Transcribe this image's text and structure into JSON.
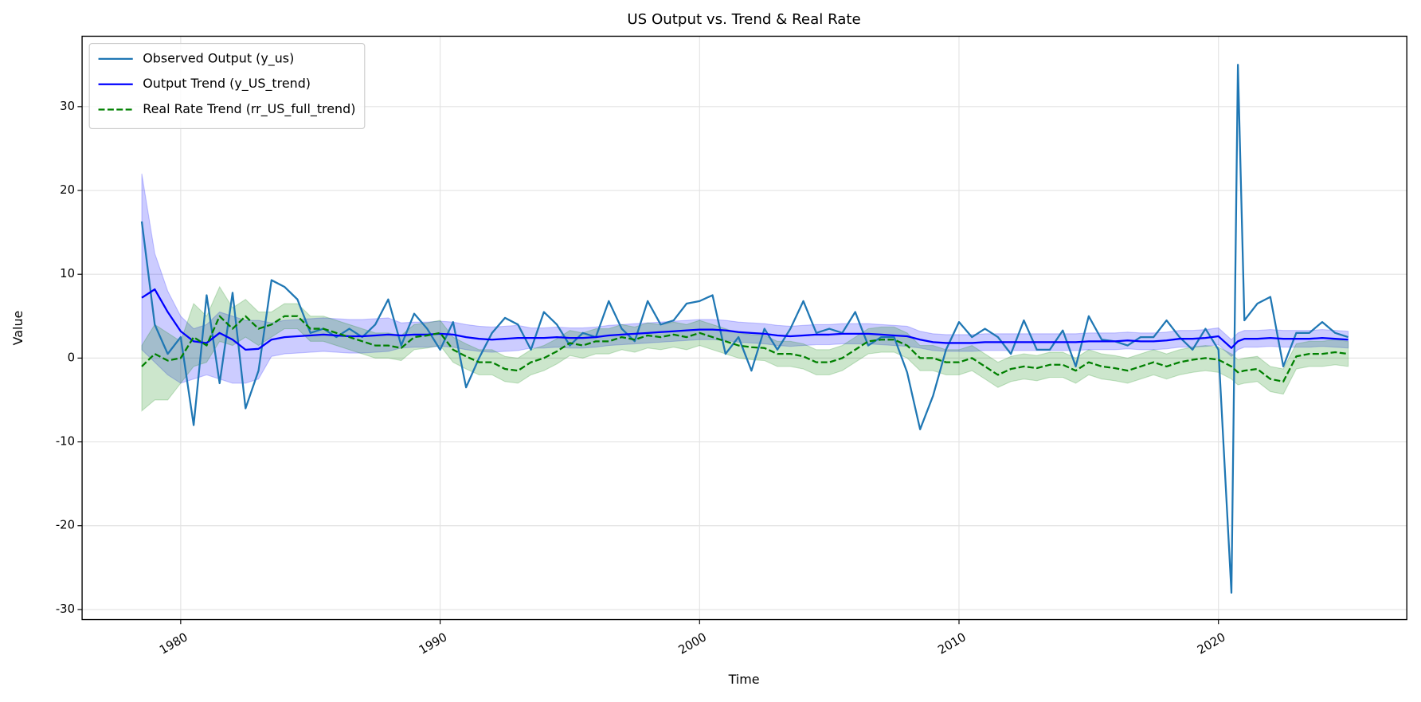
{
  "chart_data": {
    "type": "line",
    "title": "US Output vs. Trend & Real Rate",
    "x_label": "Time",
    "y_label": "Value",
    "x": [
      1978.5,
      1979,
      1979.5,
      1980,
      1980.5,
      1981,
      1981.5,
      1982,
      1982.5,
      1983,
      1983.5,
      1984,
      1984.5,
      1985,
      1985.5,
      1986,
      1986.5,
      1987,
      1987.5,
      1988,
      1988.5,
      1989,
      1989.5,
      1990,
      1990.5,
      1991,
      1991.5,
      1992,
      1992.5,
      1993,
      1993.5,
      1994,
      1994.5,
      1995,
      1995.5,
      1996,
      1996.5,
      1997,
      1997.5,
      1998,
      1998.5,
      1999,
      1999.5,
      2000,
      2000.5,
      2001,
      2001.5,
      2002,
      2002.5,
      2003,
      2003.5,
      2004,
      2004.5,
      2005,
      2005.5,
      2006,
      2006.5,
      2007,
      2007.5,
      2008,
      2008.5,
      2009,
      2009.5,
      2010,
      2010.5,
      2011,
      2011.5,
      2012,
      2012.5,
      2013,
      2013.5,
      2014,
      2014.5,
      2015,
      2015.5,
      2016,
      2016.5,
      2017,
      2017.5,
      2018,
      2018.5,
      2019,
      2019.5,
      2020,
      2020.5,
      2020.75,
      2021,
      2021.5,
      2022,
      2022.5,
      2023,
      2023.5,
      2024,
      2024.5,
      2025
    ],
    "xlim": [
      1976.2,
      2027.26
    ],
    "xticks": [
      1980,
      1990,
      2000,
      2010,
      2020
    ],
    "ylim": [
      -31.2,
      38.4
    ],
    "yticks": [
      -30,
      -20,
      -10,
      0,
      10,
      20,
      30
    ],
    "grid": true,
    "legend": "upper left",
    "series": [
      {
        "name": "Observed Output (y_us)",
        "color": "#1f77b4",
        "dash": "solid",
        "values": [
          16.3,
          4,
          0.5,
          2.5,
          -8,
          7.5,
          -3,
          7.8,
          -6,
          -1.5,
          9.3,
          8.5,
          7,
          3,
          3.5,
          2.5,
          3.5,
          2.5,
          4,
          7,
          1.5,
          5.3,
          3.5,
          1,
          4.3,
          -3.5,
          0,
          3,
          4.8,
          4,
          1,
          5.5,
          4,
          1.5,
          3,
          2.5,
          6.8,
          3.5,
          2,
          6.8,
          4,
          4.5,
          6.5,
          6.8,
          7.5,
          0.5,
          2.5,
          -1.5,
          3.5,
          1,
          3.5,
          6.8,
          3,
          3.5,
          3,
          5.5,
          1.5,
          2.5,
          2.5,
          -1.7,
          -8.5,
          -4.5,
          1,
          4.3,
          2.5,
          3.5,
          2.5,
          0.5,
          4.5,
          1,
          1,
          3.3,
          -1,
          5,
          2.2,
          2,
          1.5,
          2.5,
          2.5,
          4.5,
          2.5,
          1,
          3.5,
          1,
          -28,
          35,
          4.5,
          6.5,
          7.3,
          -1,
          3,
          3,
          4.3,
          3,
          2.5
        ]
      },
      {
        "name": "Output Trend (y_US_trend)",
        "color": "#0000ff",
        "dash": "solid",
        "values": [
          7.2,
          8.2,
          5.5,
          3.2,
          2,
          1.8,
          3,
          2.2,
          1,
          1.1,
          2.2,
          2.5,
          2.6,
          2.7,
          2.8,
          2.7,
          2.6,
          2.6,
          2.7,
          2.8,
          2.7,
          2.8,
          2.8,
          2.9,
          2.8,
          2.5,
          2.3,
          2.2,
          2.3,
          2.4,
          2.4,
          2.4,
          2.5,
          2.4,
          2.4,
          2.5,
          2.7,
          2.8,
          2.9,
          3,
          3.1,
          3.2,
          3.3,
          3.4,
          3.4,
          3.3,
          3.1,
          3,
          2.9,
          2.7,
          2.6,
          2.7,
          2.8,
          2.8,
          2.9,
          2.9,
          2.9,
          2.8,
          2.7,
          2.6,
          2.2,
          1.9,
          1.8,
          1.8,
          1.8,
          1.9,
          1.9,
          1.9,
          1.9,
          1.9,
          1.9,
          1.9,
          1.9,
          2,
          2,
          2,
          2.1,
          2,
          2,
          2.1,
          2.3,
          2.3,
          2.4,
          2.6,
          1.2,
          2,
          2.3,
          2.3,
          2.4,
          2.3,
          2.3,
          2.3,
          2.4,
          2.3,
          2.2
        ],
        "band": {
          "color": "#0000ff",
          "upper": [
            22,
            12.5,
            8,
            5,
            3.5,
            4,
            5.5,
            5,
            4.5,
            4.5,
            4.2,
            4.5,
            4.6,
            4.7,
            4.8,
            4.7,
            4.6,
            4.6,
            4.7,
            4.8,
            4.2,
            4.3,
            4.3,
            4.4,
            4.3,
            4,
            3.8,
            3.7,
            3.8,
            3.9,
            3.6,
            3.6,
            3.7,
            3.6,
            3.6,
            3.7,
            3.9,
            4,
            4.1,
            4.2,
            4.3,
            4.4,
            4.5,
            4.6,
            4.6,
            4.5,
            4.3,
            4.2,
            4.1,
            3.9,
            3.8,
            3.9,
            4,
            4,
            4.1,
            4.1,
            4.1,
            4,
            3.9,
            3.8,
            3.2,
            2.9,
            2.8,
            2.8,
            2.8,
            2.9,
            2.9,
            2.9,
            2.9,
            2.9,
            2.9,
            2.9,
            2.9,
            3,
            3,
            3,
            3.1,
            3,
            3,
            3.1,
            3.3,
            3.3,
            3.4,
            3.6,
            2.2,
            3,
            3.3,
            3.3,
            3.4,
            3.3,
            3.3,
            3.3,
            3.4,
            3.3,
            3.2
          ],
          "lower": [
            1,
            -0.5,
            -2,
            -3,
            -2.5,
            -2,
            -2.5,
            -3,
            -3,
            -2.5,
            0.2,
            0.5,
            0.6,
            0.7,
            0.8,
            0.7,
            0.6,
            0.6,
            0.7,
            0.8,
            1.2,
            1.3,
            1.3,
            1.4,
            1.3,
            1,
            0.8,
            0.7,
            0.8,
            0.9,
            1.2,
            1.2,
            1.3,
            1.2,
            1.2,
            1.3,
            1.5,
            1.6,
            1.7,
            1.8,
            1.9,
            2,
            2.1,
            2.2,
            2.2,
            2.1,
            1.9,
            1.8,
            1.7,
            1.5,
            1.4,
            1.5,
            1.6,
            1.6,
            1.7,
            1.7,
            1.7,
            1.6,
            1.5,
            1.4,
            1.2,
            0.9,
            0.8,
            0.8,
            0.8,
            0.9,
            0.9,
            0.9,
            0.9,
            0.9,
            0.9,
            0.9,
            0.9,
            1,
            1,
            1,
            1.1,
            1,
            1,
            1.1,
            1.3,
            1.3,
            1.4,
            1.6,
            0.2,
            1,
            1.3,
            1.3,
            1.4,
            1.3,
            1.3,
            1.3,
            1.4,
            1.3,
            1.2
          ]
        }
      },
      {
        "name": "Real Rate Trend (rr_US_full_trend)",
        "color": "#008000",
        "dash": "dashed",
        "values": [
          -1,
          0.5,
          -0.3,
          0,
          2.5,
          1.5,
          5,
          3.5,
          5,
          3.5,
          4,
          5,
          5,
          3.5,
          3.5,
          3,
          2.5,
          2,
          1.5,
          1.5,
          1.2,
          2.5,
          2.7,
          3,
          1,
          0.2,
          -0.5,
          -0.5,
          -1.3,
          -1.5,
          -0.5,
          0,
          0.8,
          1.8,
          1.5,
          2,
          2,
          2.5,
          2.2,
          2.7,
          2.5,
          2.8,
          2.5,
          3,
          2.5,
          2,
          1.5,
          1.3,
          1.2,
          0.5,
          0.5,
          0.2,
          -0.5,
          -0.5,
          0,
          1,
          2,
          2.2,
          2.2,
          1.5,
          0,
          0,
          -0.5,
          -0.5,
          0,
          -1,
          -2,
          -1.3,
          -1,
          -1.2,
          -0.8,
          -0.8,
          -1.5,
          -0.5,
          -1,
          -1.2,
          -1.5,
          -1,
          -0.5,
          -1,
          -0.5,
          -0.2,
          0,
          -0.2,
          -1,
          -1.7,
          -1.5,
          -1.3,
          -2.5,
          -2.8,
          0.2,
          0.5,
          0.5,
          0.7,
          0.5
        ],
        "band": {
          "color": "#008000",
          "upper": [
            1.5,
            4,
            3,
            2,
            6.5,
            5,
            8.5,
            6,
            7,
            5.5,
            5.5,
            6.5,
            6.5,
            5,
            5,
            4.5,
            4,
            3.5,
            3,
            3,
            2.7,
            4,
            4.2,
            4.5,
            2.5,
            1.7,
            1,
            1,
            0.2,
            0,
            1,
            1.5,
            2.3,
            3.3,
            3,
            3.5,
            3.5,
            4,
            3.7,
            4.2,
            4,
            4.3,
            4,
            4.5,
            4,
            3.5,
            3,
            2.8,
            2.7,
            2,
            2,
            1.7,
            1,
            1,
            1.5,
            2.5,
            3.5,
            3.7,
            3.7,
            3,
            1.5,
            1.5,
            1,
            1,
            1.5,
            0.5,
            -0.5,
            0.2,
            0.5,
            0.3,
            0.7,
            0.7,
            0,
            1,
            0.5,
            0.3,
            0,
            0.5,
            1,
            0.5,
            1,
            1.3,
            1.5,
            1.3,
            0.5,
            -0.2,
            0,
            0.2,
            -1,
            -1.3,
            1.7,
            2,
            2,
            2.2,
            2
          ],
          "lower": [
            -6.3,
            -5,
            -5,
            -3,
            -1,
            -0.5,
            2,
            1.5,
            2.5,
            1.5,
            2.5,
            3.5,
            3.5,
            2,
            2,
            1.5,
            1,
            0.5,
            0,
            0,
            -0.3,
            1,
            1.2,
            1.5,
            -0.5,
            -1.3,
            -2,
            -2,
            -2.8,
            -3,
            -2,
            -1.5,
            -0.7,
            0.3,
            0,
            0.5,
            0.5,
            1,
            0.7,
            1.2,
            1,
            1.3,
            1,
            1.5,
            1,
            0.5,
            0,
            -0.2,
            -0.3,
            -1,
            -1,
            -1.3,
            -2,
            -2,
            -1.5,
            -0.5,
            0.5,
            0.7,
            0.7,
            0,
            -1.5,
            -1.5,
            -2,
            -2,
            -1.5,
            -2.5,
            -3.5,
            -2.8,
            -2.5,
            -2.7,
            -2.3,
            -2.3,
            -3,
            -2,
            -2.5,
            -2.7,
            -3,
            -2.5,
            -2,
            -2.5,
            -2,
            -1.7,
            -1.5,
            -1.7,
            -2.5,
            -3.2,
            -3,
            -2.8,
            -4,
            -4.3,
            -1.3,
            -1,
            -1,
            -0.8,
            -1
          ]
        }
      }
    ]
  }
}
